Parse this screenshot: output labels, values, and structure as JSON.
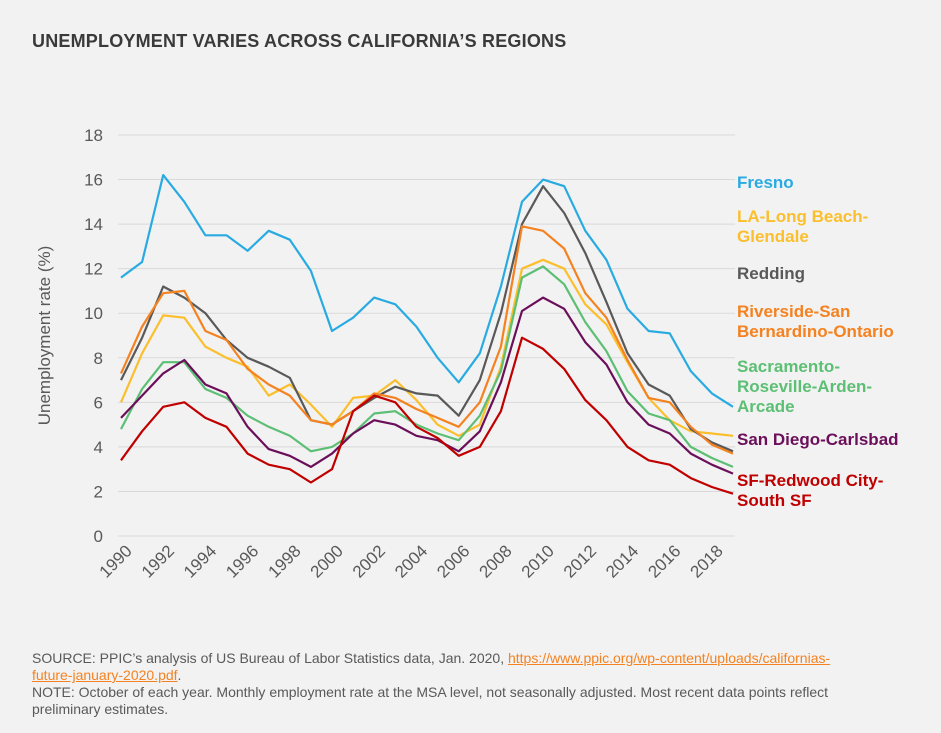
{
  "chart_data": {
    "type": "line",
    "title": "UNEMPLOYMENT VARIES ACROSS CALIFORNIA’S REGIONS",
    "y_label": "Unemployment rate (%)",
    "x": [
      1990,
      1991,
      1992,
      1993,
      1994,
      1995,
      1996,
      1997,
      1998,
      1999,
      2000,
      2001,
      2002,
      2003,
      2004,
      2005,
      2006,
      2007,
      2008,
      2009,
      2010,
      2011,
      2012,
      2013,
      2014,
      2015,
      2016,
      2017,
      2018,
      2019
    ],
    "xlim": [
      1990,
      2019
    ],
    "xticks": [
      1990,
      1992,
      1994,
      1996,
      1998,
      2000,
      2002,
      2004,
      2006,
      2008,
      2010,
      2012,
      2014,
      2016,
      2018
    ],
    "ylim": [
      0,
      18
    ],
    "yticks": [
      0,
      2,
      4,
      6,
      8,
      10,
      12,
      14,
      16,
      18
    ],
    "grid": true,
    "series": [
      {
        "name": "Fresno",
        "color": "#29abe2",
        "values": [
          11.6,
          12.3,
          16.2,
          15.0,
          13.5,
          13.5,
          12.8,
          13.7,
          13.3,
          11.9,
          9.2,
          9.8,
          10.7,
          10.4,
          9.4,
          8.0,
          6.9,
          8.2,
          11.2,
          15.0,
          16.0,
          15.7,
          13.7,
          12.4,
          10.2,
          9.2,
          9.1,
          7.4,
          6.4,
          5.8
        ]
      },
      {
        "name": "LA-Long Beach-Glendale",
        "color": "#fbbf2d",
        "values": [
          6.0,
          8.2,
          9.9,
          9.8,
          8.5,
          8.0,
          7.6,
          6.3,
          6.8,
          5.9,
          4.9,
          6.2,
          6.3,
          7.0,
          6.1,
          5.0,
          4.5,
          5.0,
          7.6,
          12.0,
          12.4,
          12.0,
          10.4,
          9.5,
          7.8,
          6.2,
          5.2,
          4.7,
          4.6,
          4.5
        ]
      },
      {
        "name": "Redding",
        "color": "#595959",
        "values": [
          7.0,
          8.9,
          11.2,
          10.7,
          10.0,
          8.8,
          8.0,
          7.6,
          7.1,
          5.2,
          5.0,
          5.6,
          6.2,
          6.7,
          6.4,
          6.3,
          5.4,
          7.0,
          10.0,
          14.0,
          15.7,
          14.5,
          12.7,
          10.5,
          8.2,
          6.8,
          6.3,
          4.8,
          4.2,
          3.8
        ]
      },
      {
        "name": "Riverside-San Bernardino-Ontario",
        "color": "#f58220",
        "values": [
          7.3,
          9.4,
          10.9,
          11.0,
          9.2,
          8.8,
          7.5,
          6.8,
          6.3,
          5.2,
          5.0,
          5.6,
          6.4,
          6.2,
          5.7,
          5.3,
          4.9,
          6.0,
          8.5,
          13.9,
          13.7,
          12.9,
          10.9,
          9.8,
          7.9,
          6.2,
          6.0,
          4.9,
          4.1,
          3.7
        ]
      },
      {
        "name": "Sacramento-Roseville-Arden-Arcade",
        "color": "#5cbf74",
        "values": [
          4.8,
          6.6,
          7.8,
          7.8,
          6.6,
          6.2,
          5.4,
          4.9,
          4.5,
          3.8,
          4.0,
          4.6,
          5.5,
          5.6,
          5.0,
          4.6,
          4.3,
          5.4,
          7.4,
          11.6,
          12.1,
          11.3,
          9.6,
          8.3,
          6.5,
          5.5,
          5.2,
          4.0,
          3.5,
          3.1
        ]
      },
      {
        "name": "San Diego-Carlsbad",
        "color": "#6b0f5a",
        "values": [
          5.3,
          6.3,
          7.3,
          7.9,
          6.8,
          6.4,
          4.9,
          3.9,
          3.6,
          3.1,
          3.7,
          4.6,
          5.2,
          5.0,
          4.5,
          4.3,
          3.8,
          4.7,
          6.9,
          10.1,
          10.7,
          10.2,
          8.7,
          7.7,
          6.0,
          5.0,
          4.6,
          3.7,
          3.2,
          2.8
        ]
      },
      {
        "name": "SF-Redwood City-South SF",
        "color": "#c00000",
        "values": [
          3.4,
          4.7,
          5.8,
          6.0,
          5.3,
          4.9,
          3.7,
          3.2,
          3.0,
          2.4,
          3.0,
          5.6,
          6.3,
          6.0,
          4.9,
          4.4,
          3.6,
          4.0,
          5.6,
          8.9,
          8.4,
          7.5,
          6.1,
          5.2,
          4.0,
          3.4,
          3.2,
          2.6,
          2.2,
          1.9
        ]
      }
    ],
    "source_text": "SOURCE: PPIC’s analysis of US Bureau of Labor Statistics data, Jan. 2020, ",
    "source_url": "https://www.ppic.org/wp-content/uploads/californias-future-january-2020.pdf",
    "source_end": ".",
    "note": "NOTE: October of each year. Monthly employment rate at the MSA level, not seasonally adjusted. Most recent data points reflect preliminary estimates."
  }
}
